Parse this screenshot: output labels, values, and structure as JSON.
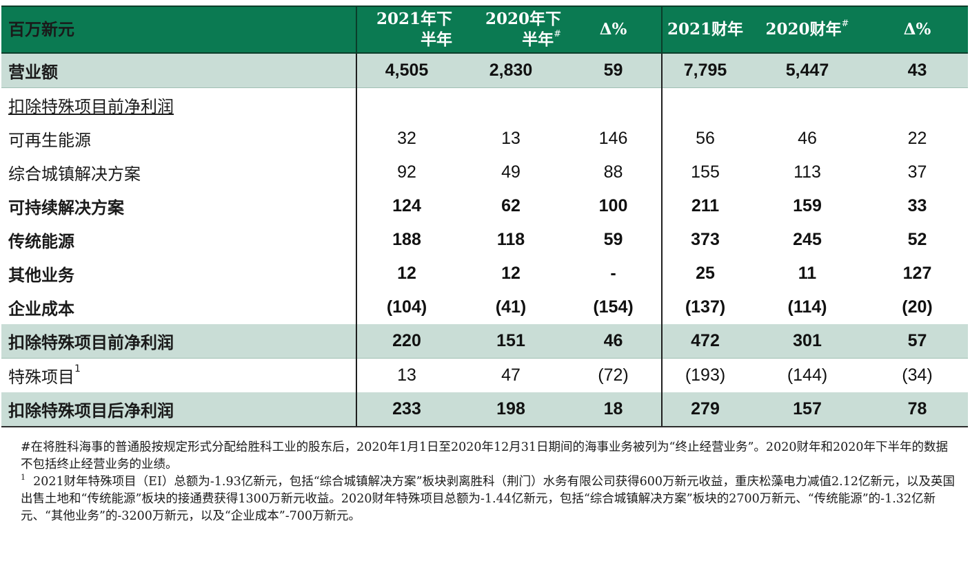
{
  "header": {
    "label": "百万新元",
    "col1": [
      "2021年下",
      "半年"
    ],
    "col2": [
      "2020年下",
      "半年"
    ],
    "col2_mark": "#",
    "col3": "Δ%",
    "col4": "2021财年",
    "col5": "2020财年",
    "col5_mark": "#",
    "col6": "Δ%"
  },
  "rows": {
    "revenue": {
      "label": "营业额",
      "values": [
        "4,505",
        "2,830",
        "59",
        "7,795",
        "5,447",
        "43"
      ]
    },
    "section": {
      "label": "扣除特殊项目前净利润"
    },
    "renewable": {
      "label": "可再生能源",
      "values": [
        "32",
        "13",
        "146",
        "56",
        "46",
        "22"
      ]
    },
    "urban": {
      "label": "综合城镇解决方案",
      "values": [
        "92",
        "49",
        "88",
        "155",
        "113",
        "37"
      ]
    },
    "sustainable": {
      "label": "可持续解决方案",
      "values": [
        "124",
        "62",
        "100",
        "211",
        "159",
        "33"
      ]
    },
    "conventional": {
      "label": "传统能源",
      "values": [
        "188",
        "118",
        "59",
        "373",
        "245",
        "52"
      ]
    },
    "other": {
      "label": "其他业务",
      "values": [
        "12",
        "12",
        "-",
        "25",
        "11",
        "127"
      ]
    },
    "corporate": {
      "label": "企业成本",
      "values": [
        "(104)",
        "(41)",
        "(154)",
        "(137)",
        "(114)",
        "(20)"
      ]
    },
    "net_before": {
      "label": "扣除特殊项目前净利润",
      "values": [
        "220",
        "151",
        "46",
        "472",
        "301",
        "57"
      ]
    },
    "exceptional": {
      "label": "特殊项目",
      "mark": "1",
      "values": [
        "13",
        "47",
        "(72)",
        "(193)",
        "(144)",
        "(34)"
      ]
    },
    "net_after": {
      "label": "扣除特殊项目后净利润",
      "values": [
        "233",
        "198",
        "18",
        "279",
        "157",
        "78"
      ]
    }
  },
  "notes": {
    "hash_note": "#在将胜科海事的普通股按规定形式分配给胜科工业的股东后，2020年1月1日至2020年12月31日期间的海事业务被列为“终止经营业务”。2020财年和2020年下半年的数据不包括终止经营业务的业绩。",
    "footnote_mark": "1",
    "footnote_1": "2021财年特殊项目（EI）总额为-1.93亿新元，包括“综合城镇解决方案”板块剥离胜科（荆门）水务有限公司获得600万新元收益，重庆松藻电力减值2.12亿新元，以及英国出售土地和“传统能源”板块的接通费获得1300万新元收益。2020财年特殊项目总额为-1.44亿新元，包括“综合城镇解决方案”板块的2700万新元、“传统能源”的-1.32亿新元、“其他业务”的-3200万新元，以及“企业成本”-700万新元。"
  },
  "colors": {
    "header_bg": "#0b7a52",
    "shade_bg": "#c9ddd6"
  }
}
